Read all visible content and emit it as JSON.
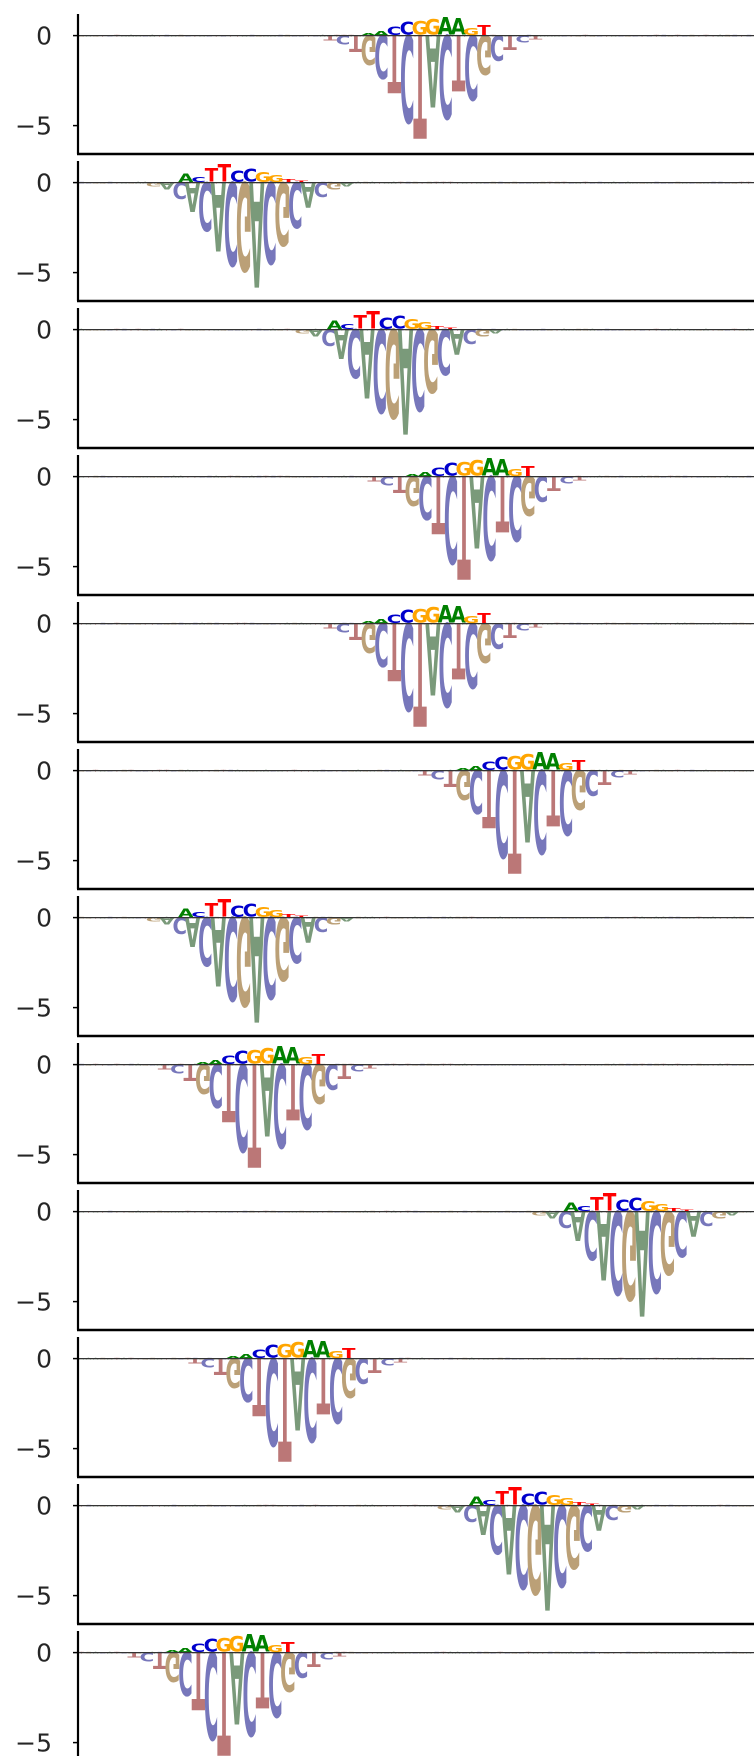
{
  "figure": {
    "background": "#ffffff",
    "axis_color": "#000000",
    "baseline_color": "#333333"
  },
  "base_colors": {
    "A": "#008000",
    "C": "#0000cc",
    "G": "#ffa500",
    "T": "#ff0000"
  },
  "neg_colors": {
    "A": "#7a9a7a",
    "C": "#7777bb",
    "G": "#bba077",
    "T": "#bb7777"
  },
  "chart_data": [
    {
      "type": "sequence-logo",
      "ytick_labels": [
        "0",
        "−5"
      ],
      "yticks": [
        0,
        -5
      ],
      "ylim": [
        -5.8,
        1.2
      ],
      "xlim": [
        0,
        100
      ],
      "motif": "AACCGGAAGT",
      "center": 52.5,
      "mode": "gaaa"
    },
    {
      "type": "sequence-logo",
      "ytick_labels": [
        "0",
        "−5"
      ],
      "yticks": [
        0,
        -5
      ],
      "ylim": [
        -5.8,
        1.2
      ],
      "xlim": [
        0,
        100
      ],
      "motif": "ACTTCCGGTT",
      "center": 25.5,
      "mode": "ttcc"
    },
    {
      "type": "sequence-logo",
      "ytick_labels": [
        "0",
        "−5"
      ],
      "yticks": [
        0,
        -5
      ],
      "ylim": [
        -5.8,
        1.2
      ],
      "xlim": [
        0,
        100
      ],
      "motif": "ACTTCCGGTT",
      "center": 47.5,
      "mode": "ttcc"
    },
    {
      "type": "sequence-logo",
      "ytick_labels": [
        "0",
        "−5"
      ],
      "yticks": [
        0,
        -5
      ],
      "ylim": [
        -5.8,
        1.2
      ],
      "xlim": [
        0,
        100
      ],
      "motif": "AACCGGAAGT",
      "center": 59.0,
      "mode": "gaaa"
    },
    {
      "type": "sequence-logo",
      "ytick_labels": [
        "0",
        "−5"
      ],
      "yticks": [
        0,
        -5
      ],
      "ylim": [
        -5.8,
        1.2
      ],
      "xlim": [
        0,
        100
      ],
      "motif": "AACCGGAAGT",
      "center": 52.5,
      "mode": "gaaa"
    },
    {
      "type": "sequence-logo",
      "ytick_labels": [
        "0",
        "−5"
      ],
      "yticks": [
        0,
        -5
      ],
      "ylim": [
        -5.8,
        1.2
      ],
      "xlim": [
        0,
        100
      ],
      "motif": "AACCGGAAGT",
      "center": 66.5,
      "mode": "gaaa"
    },
    {
      "type": "sequence-logo",
      "ytick_labels": [
        "0",
        "−5"
      ],
      "yticks": [
        0,
        -5
      ],
      "ylim": [
        -5.8,
        1.2
      ],
      "xlim": [
        0,
        100
      ],
      "motif": "ACTTCCGGTT",
      "center": 25.5,
      "mode": "ttcc"
    },
    {
      "type": "sequence-logo",
      "ytick_labels": [
        "0",
        "−5"
      ],
      "yticks": [
        0,
        -5
      ],
      "ylim": [
        -5.8,
        1.2
      ],
      "xlim": [
        0,
        100
      ],
      "motif": "AACCGGAAGT",
      "center": 28.0,
      "mode": "gaaa"
    },
    {
      "type": "sequence-logo",
      "ytick_labels": [
        "0",
        "−5"
      ],
      "yticks": [
        0,
        -5
      ],
      "ylim": [
        -5.8,
        1.2
      ],
      "xlim": [
        0,
        100
      ],
      "motif": "ACTTCCGGTT",
      "center": 82.5,
      "mode": "ttcc"
    },
    {
      "type": "sequence-logo",
      "ytick_labels": [
        "0",
        "−5"
      ],
      "yticks": [
        0,
        -5
      ],
      "ylim": [
        -5.8,
        1.2
      ],
      "xlim": [
        0,
        100
      ],
      "motif": "AACCGGAAGT",
      "center": 32.5,
      "mode": "gaaa"
    },
    {
      "type": "sequence-logo",
      "ytick_labels": [
        "0",
        "−5"
      ],
      "yticks": [
        0,
        -5
      ],
      "ylim": [
        -5.8,
        1.2
      ],
      "xlim": [
        0,
        100
      ],
      "motif": "ACTTCCGGTT",
      "center": 68.5,
      "mode": "ttcc"
    },
    {
      "type": "sequence-logo",
      "ytick_labels": [
        "0",
        "−5"
      ],
      "yticks": [
        0,
        -5
      ],
      "ylim": [
        -5.8,
        1.2
      ],
      "xlim": [
        0,
        100
      ],
      "motif": "AACCGGAAGT",
      "center": 23.5,
      "mode": "gaaa"
    }
  ]
}
